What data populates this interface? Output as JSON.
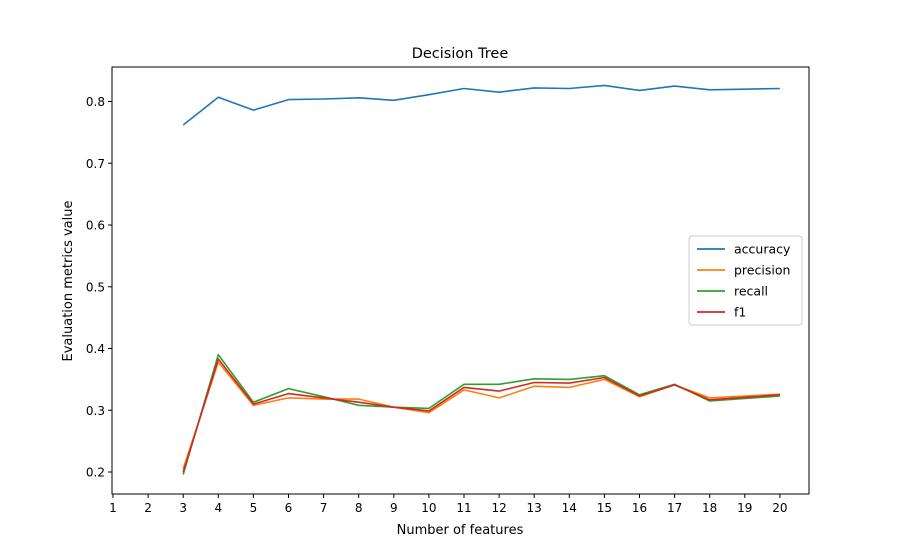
{
  "chart_data": {
    "type": "line",
    "title": "Decision Tree",
    "xlabel": "Number of features",
    "ylabel": "Evaluation metrics value",
    "xlim": [
      1,
      20
    ],
    "ylim": [
      0.165,
      0.86
    ],
    "xticks": [
      1,
      2,
      3,
      4,
      5,
      6,
      7,
      8,
      9,
      10,
      11,
      12,
      13,
      14,
      15,
      16,
      17,
      18,
      19,
      20
    ],
    "yticks": [
      0.2,
      0.3,
      0.4,
      0.5,
      0.6,
      0.7,
      0.8
    ],
    "grid": false,
    "legend_position": "center-right",
    "x": [
      3,
      4,
      5,
      6,
      7,
      8,
      9,
      10,
      11,
      12,
      13,
      14,
      15,
      16,
      17,
      18,
      19,
      20
    ],
    "series": [
      {
        "name": "accuracy",
        "color": "#1f77b4",
        "values": [
          0.762,
          0.807,
          0.786,
          0.803,
          0.804,
          0.806,
          0.802,
          0.811,
          0.821,
          0.815,
          0.822,
          0.821,
          0.826,
          0.818,
          0.825,
          0.819,
          0.82,
          0.821
        ]
      },
      {
        "name": "precision",
        "color": "#ff7f0e",
        "values": [
          0.205,
          0.378,
          0.308,
          0.32,
          0.318,
          0.318,
          0.305,
          0.296,
          0.333,
          0.32,
          0.339,
          0.337,
          0.35,
          0.322,
          0.341,
          0.32,
          0.323,
          0.326
        ]
      },
      {
        "name": "recall",
        "color": "#2ca02c",
        "values": [
          0.196,
          0.39,
          0.313,
          0.335,
          0.322,
          0.308,
          0.305,
          0.303,
          0.342,
          0.342,
          0.351,
          0.35,
          0.356,
          0.325,
          0.342,
          0.315,
          0.319,
          0.323
        ]
      },
      {
        "name": "f1",
        "color": "#d62728",
        "values": [
          0.2,
          0.383,
          0.31,
          0.327,
          0.32,
          0.313,
          0.305,
          0.299,
          0.337,
          0.331,
          0.345,
          0.344,
          0.353,
          0.323,
          0.341,
          0.317,
          0.321,
          0.325
        ]
      }
    ]
  }
}
